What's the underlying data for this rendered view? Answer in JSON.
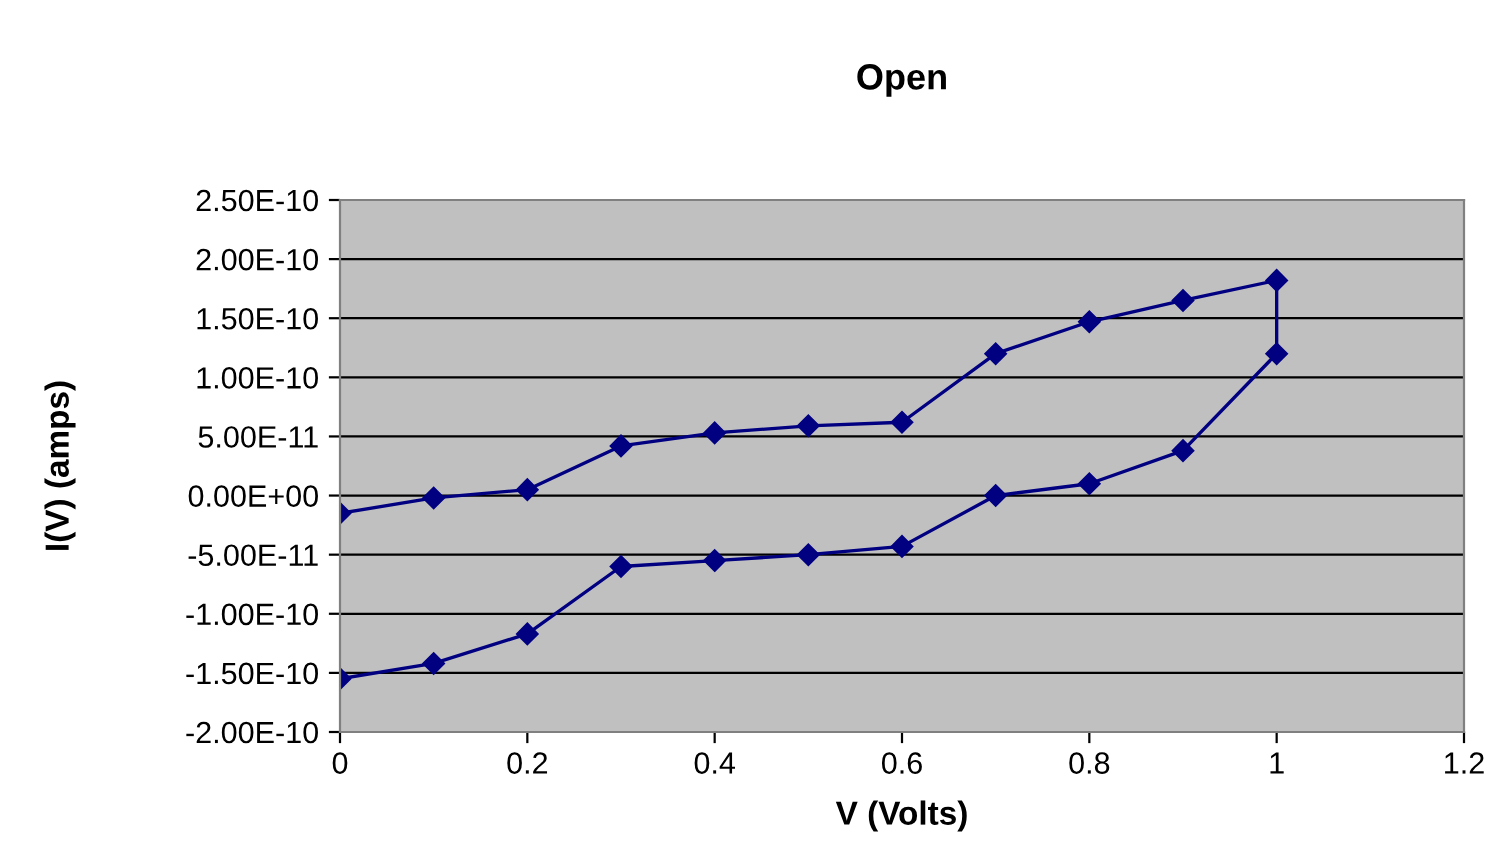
{
  "chart_data": {
    "type": "line",
    "title": "Open",
    "xlabel": "V (Volts)",
    "ylabel": "I(V) (amps)",
    "series": [
      {
        "color": "#000080",
        "x": [
          0,
          0.1,
          0.2,
          0.3,
          0.4,
          0.5,
          0.6,
          0.7,
          0.8,
          0.9,
          1.0,
          1.0,
          0.9,
          0.8,
          0.7,
          0.6,
          0.5,
          0.4,
          0.3,
          0.2,
          0.1,
          0
        ],
        "values": [
          -1.5e-11,
          -2e-12,
          5e-12,
          4.2e-11,
          5.3e-11,
          5.9e-11,
          6.2e-11,
          1.2e-10,
          1.47e-10,
          1.65e-10,
          1.82e-10,
          1.2e-10,
          3.8e-11,
          1e-11,
          0,
          -4.3e-11,
          -5e-11,
          -5.5e-11,
          -6e-11,
          -1.17e-10,
          -1.42e-10,
          -1.55e-10
        ]
      }
    ],
    "xlim": [
      0,
      1.2
    ],
    "xticks": [
      0,
      0.2,
      0.4,
      0.6,
      0.8,
      1,
      1.2
    ],
    "ylim": [
      -2e-10,
      2.5e-10
    ],
    "yticks": [
      {
        "value": -2e-10,
        "label": "-2.00E-10"
      },
      {
        "value": -1.5e-10,
        "label": "-1.50E-10"
      },
      {
        "value": -1e-10,
        "label": "-1.00E-10"
      },
      {
        "value": -5e-11,
        "label": "-5.00E-11"
      },
      {
        "value": 0,
        "label": "0.00E+00"
      },
      {
        "value": 5e-11,
        "label": "5.00E-11"
      },
      {
        "value": 1e-10,
        "label": "1.00E-10"
      },
      {
        "value": 1.5e-10,
        "label": "1.50E-10"
      },
      {
        "value": 2e-10,
        "label": "2.00E-10"
      },
      {
        "value": 2.5e-10,
        "label": "2.50E-10"
      }
    ],
    "grid": "y",
    "marker": "diamond",
    "line_style": "solid"
  }
}
